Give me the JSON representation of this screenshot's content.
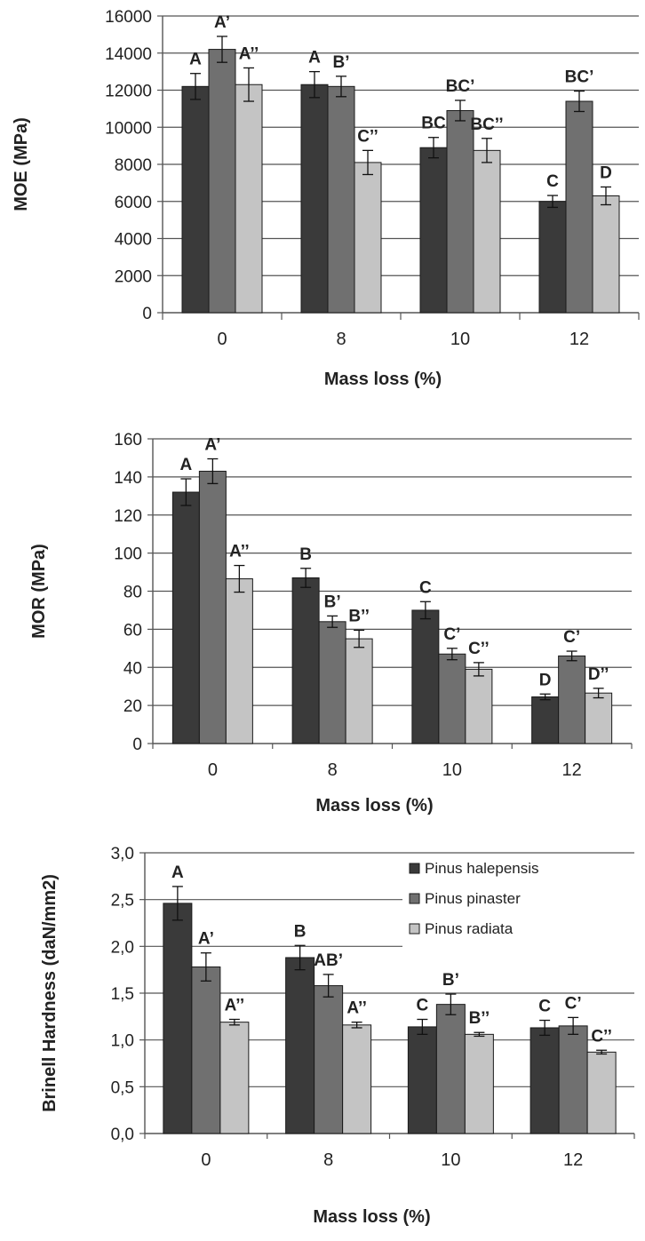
{
  "colors": {
    "Pinus halepensis": "#3a3a3a",
    "Pinus pinaster": "#707070",
    "Pinus radiata": "#c4c4c4",
    "grid": "#555555",
    "text": "#222222"
  },
  "chart_data": [
    {
      "type": "bar",
      "title": "",
      "xlabel": "Mass loss (%)",
      "ylabel": "MOE (MPa)",
      "ylim": [
        0,
        16000
      ],
      "ytick_step": 2000,
      "ytick_labels": [
        "0",
        "2000",
        "4000",
        "6000",
        "8000",
        "10000",
        "12000",
        "14000",
        "16000"
      ],
      "grid": true,
      "categories": [
        "0",
        "8",
        "10",
        "12"
      ],
      "series": [
        {
          "name": "Pinus halepensis",
          "values": [
            12200,
            12300,
            8900,
            6000
          ],
          "errors": [
            700,
            700,
            550,
            320
          ],
          "labels": [
            "A",
            "A",
            "BC",
            "C"
          ]
        },
        {
          "name": "Pinus pinaster",
          "values": [
            14200,
            12200,
            10900,
            11400
          ],
          "errors": [
            700,
            550,
            550,
            550
          ],
          "labels": [
            "A’",
            "B’",
            "BC’",
            "BC’"
          ]
        },
        {
          "name": "Pinus radiata",
          "values": [
            12300,
            8100,
            8750,
            6300
          ],
          "errors": [
            900,
            650,
            650,
            480
          ],
          "labels": [
            "A’’",
            "C’’",
            "BC’’",
            "D"
          ]
        }
      ]
    },
    {
      "type": "bar",
      "title": "",
      "xlabel": "Mass loss (%)",
      "ylabel": "MOR (MPa)",
      "ylim": [
        0,
        160
      ],
      "ytick_step": 20,
      "ytick_labels": [
        "0",
        "20",
        "40",
        "60",
        "80",
        "100",
        "120",
        "140",
        "160"
      ],
      "grid": true,
      "categories": [
        "0",
        "8",
        "10",
        "12"
      ],
      "series": [
        {
          "name": "Pinus halepensis",
          "values": [
            132,
            87,
            70,
            24.5
          ],
          "errors": [
            7,
            5,
            4.5,
            1.5
          ],
          "labels": [
            "A",
            "B",
            "C",
            "D"
          ]
        },
        {
          "name": "Pinus pinaster",
          "values": [
            143,
            64,
            47,
            46
          ],
          "errors": [
            6.5,
            3,
            3,
            2.5
          ],
          "labels": [
            "A’",
            "B’",
            "C’",
            "C’"
          ]
        },
        {
          "name": "Pinus radiata",
          "values": [
            86.5,
            55,
            39,
            26.5
          ],
          "errors": [
            7,
            4.5,
            3.5,
            2.5
          ],
          "labels": [
            "A’’",
            "B’’",
            "C’’",
            "D’’"
          ]
        }
      ]
    },
    {
      "type": "bar",
      "title": "",
      "xlabel": "Mass loss (%)",
      "ylabel": "Brinell Hardness (daN/mm2)",
      "ylim": [
        0,
        3
      ],
      "ytick_step": 0.5,
      "ytick_labels": [
        "0,0",
        "0,5",
        "1,0",
        "1,5",
        "2,0",
        "2,5",
        "3,0"
      ],
      "grid": true,
      "legend_position": "top-right",
      "legend": [
        "Pinus halepensis",
        "Pinus pinaster",
        "Pinus radiata"
      ],
      "categories": [
        "0",
        "8",
        "10",
        "12"
      ],
      "series": [
        {
          "name": "Pinus halepensis",
          "values": [
            2.46,
            1.88,
            1.14,
            1.13
          ],
          "errors": [
            0.18,
            0.13,
            0.08,
            0.08
          ],
          "labels": [
            "A",
            "B",
            "C",
            "C"
          ]
        },
        {
          "name": "Pinus pinaster",
          "values": [
            1.78,
            1.58,
            1.38,
            1.15
          ],
          "errors": [
            0.15,
            0.12,
            0.11,
            0.09
          ],
          "labels": [
            "A’",
            "AB’",
            "B’",
            "C’"
          ]
        },
        {
          "name": "Pinus radiata",
          "values": [
            1.19,
            1.16,
            1.06,
            0.87
          ],
          "errors": [
            0.03,
            0.03,
            0.02,
            0.02
          ],
          "labels": [
            "A’’",
            "A’’",
            "B’’",
            "C’’"
          ]
        }
      ]
    }
  ]
}
